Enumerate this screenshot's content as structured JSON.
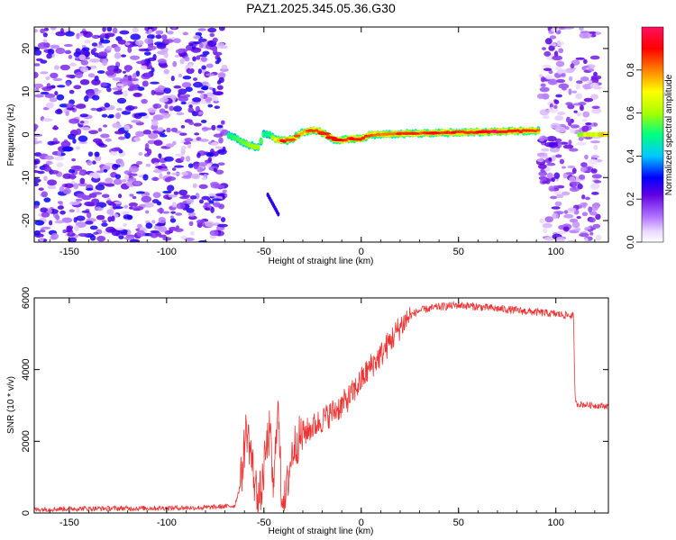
{
  "title": "PAZ1.2025.345.05.36.G30",
  "chart_data": [
    {
      "type": "heatmap",
      "xlabel": "Height of straight line (km)",
      "ylabel": "Frequency (Hz)",
      "xlim": [
        -168,
        127
      ],
      "ylim": [
        -25,
        25
      ],
      "xticks": [
        -150,
        -100,
        -50,
        0,
        50,
        100
      ],
      "xtick_labels": [
        "-150",
        "-100",
        "-50",
        "0",
        "50",
        "100"
      ],
      "yticks": [
        -20,
        -10,
        0,
        10,
        20
      ],
      "ytick_labels": [
        "-20",
        "-10",
        "0",
        "10",
        "20"
      ],
      "colorbar": {
        "label": "Normalized spectral amplitude",
        "range": [
          0,
          1
        ],
        "ticks": [
          0.0,
          0.2,
          0.4,
          0.6,
          0.8
        ],
        "tick_labels": [
          "0.0",
          "0.2",
          "0.4",
          "0.6",
          "0.8"
        ],
        "colors": [
          "#ffffff",
          "#ead8ff",
          "#b070ff",
          "#6000e0",
          "#0000ff",
          "#00c8ff",
          "#00ff80",
          "#a8ff00",
          "#ffff00",
          "#ff8000",
          "#ff0000",
          "#ff1060"
        ]
      },
      "ridge_line": {
        "x": [
          -68,
          -62,
          -57,
          -53,
          -50,
          -47,
          -44,
          -40,
          -36,
          -30,
          -25,
          -22,
          -18,
          -14,
          -10,
          -5,
          0,
          5,
          10,
          20,
          40,
          60,
          80,
          90,
          92
        ],
        "freq": [
          0,
          -1.5,
          -2.5,
          -3,
          0,
          0,
          -1.2,
          -1.5,
          -1.2,
          0.5,
          1,
          0.8,
          0,
          -1.2,
          -1.3,
          -1,
          -1,
          0,
          0,
          0.2,
          0.4,
          0.6,
          0.8,
          0.9,
          0.9
        ],
        "amplitude": [
          0.5,
          0.55,
          0.6,
          0.6,
          0.5,
          0.5,
          0.7,
          0.85,
          0.8,
          0.75,
          0.8,
          0.9,
          0.85,
          0.8,
          0.85,
          0.9,
          0.95,
          0.85,
          0.75,
          0.8,
          0.85,
          0.9,
          0.95,
          0.85,
          0.8
        ]
      },
      "noise_regions": [
        {
          "x_range": [
            -168,
            -70
          ],
          "freq_range": [
            -25,
            25
          ],
          "amplitude": 0.25
        },
        {
          "x_range": [
            92,
            122
          ],
          "freq_range": [
            -25,
            25
          ],
          "amplitude": 0.2
        }
      ]
    },
    {
      "type": "line",
      "xlabel": "Height of straight line (km)",
      "ylabel": "SNR (10 * v/v)",
      "xlim": [
        -168,
        127
      ],
      "ylim": [
        0,
        6000
      ],
      "xticks": [
        -150,
        -100,
        -50,
        0,
        50,
        100
      ],
      "xtick_labels": [
        "-150",
        "-100",
        "-50",
        "0",
        "50",
        "100"
      ],
      "yticks": [
        0,
        2000,
        4000,
        6000
      ],
      "ytick_labels": [
        "0",
        "2000",
        "4000",
        "6000"
      ],
      "color": "#ee3333",
      "series": [
        {
          "name": "SNR",
          "x": [
            -168,
            -150,
            -120,
            -100,
            -80,
            -65,
            -62,
            -59,
            -57,
            -55,
            -53,
            -51,
            -49,
            -47,
            -45,
            -43,
            -41,
            -39,
            -37,
            -35,
            -33,
            -30,
            -25,
            -20,
            -15,
            -10,
            -5,
            0,
            5,
            10,
            15,
            20,
            25,
            30,
            35,
            40,
            50,
            60,
            70,
            80,
            90,
            100,
            109,
            110,
            115,
            120,
            127
          ],
          "y": [
            100,
            120,
            130,
            140,
            150,
            200,
            800,
            2400,
            1800,
            900,
            400,
            700,
            1700,
            2300,
            500,
            3200,
            600,
            300,
            1200,
            1800,
            2000,
            2200,
            2400,
            2600,
            2800,
            3000,
            3300,
            3700,
            4100,
            4400,
            4800,
            5200,
            5500,
            5650,
            5700,
            5750,
            5800,
            5750,
            5700,
            5650,
            5600,
            5550,
            5500,
            3050,
            3020,
            3000,
            2980
          ]
        }
      ]
    }
  ]
}
